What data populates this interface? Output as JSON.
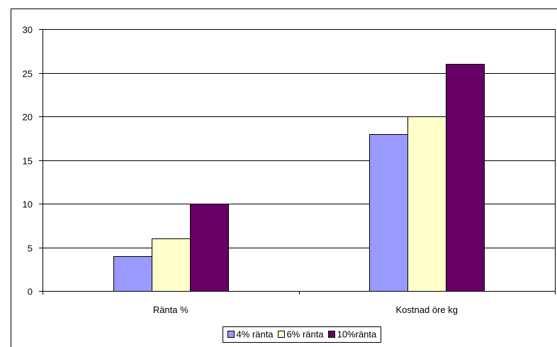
{
  "chart_data": {
    "type": "bar",
    "categories": [
      "Ränta %",
      "Kostnad öre kg"
    ],
    "series": [
      {
        "name": "4% ränta",
        "values": [
          4,
          18
        ],
        "color": "#9999FF"
      },
      {
        "name": "6% ränta",
        "values": [
          6,
          20
        ],
        "color": "#FFFFCC"
      },
      {
        "name": "10%ränta",
        "values": [
          10,
          26
        ],
        "color": "#660066"
      }
    ],
    "ylim": [
      0,
      30
    ],
    "yticks": [
      0,
      5,
      10,
      15,
      20,
      25,
      30
    ],
    "grid": true,
    "legend_position": "bottom",
    "title": "",
    "xlabel": "",
    "ylabel": ""
  }
}
